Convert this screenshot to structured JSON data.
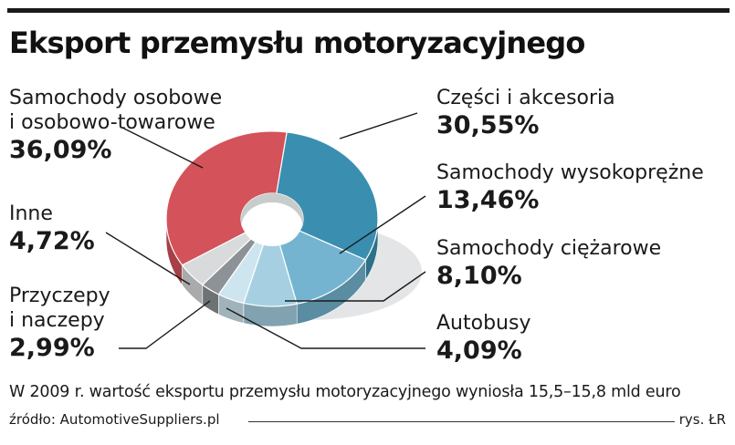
{
  "chart_data": {
    "type": "pie",
    "title": "Eksport przemysłu motoryzacyjnego",
    "slices": [
      {
        "label_lines": [
          "Części i akcesoria"
        ],
        "value": 30.55,
        "value_text": "30,55%",
        "color": "#3a8fb0"
      },
      {
        "label_lines": [
          "Samochody wysokoprężne"
        ],
        "value": 13.46,
        "value_text": "13,46%",
        "color": "#74b4d0"
      },
      {
        "label_lines": [
          "Samochody ciężarowe"
        ],
        "value": 8.1,
        "value_text": "8,10%",
        "color": "#a6d0e2"
      },
      {
        "label_lines": [
          "Autobusy"
        ],
        "value": 4.09,
        "value_text": "4,09%",
        "color": "#cde5ef"
      },
      {
        "label_lines": [
          "Przyczepy",
          "i naczepy"
        ],
        "value": 2.99,
        "value_text": "2,99%",
        "color": "#8c9296"
      },
      {
        "label_lines": [
          "Inne"
        ],
        "value": 4.72,
        "value_text": "4,72%",
        "color": "#d8dadb"
      },
      {
        "label_lines": [
          "Samochody osobowe",
          "i osobowo-towarowe"
        ],
        "value": 36.09,
        "value_text": "36,09%",
        "color": "#d4525a"
      }
    ]
  },
  "footer": {
    "note": "W 2009 r. wartość eksportu przemysłu motoryzacyjnego wyniosła 15,5–15,8 mld euro",
    "source": "źródło: AutomotiveSuppliers.pl",
    "credit": "rys. ŁR"
  }
}
